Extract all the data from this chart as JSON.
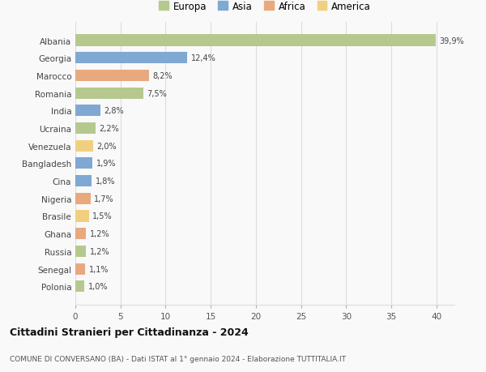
{
  "countries": [
    "Albania",
    "Georgia",
    "Marocco",
    "Romania",
    "India",
    "Ucraina",
    "Venezuela",
    "Bangladesh",
    "Cina",
    "Nigeria",
    "Brasile",
    "Ghana",
    "Russia",
    "Senegal",
    "Polonia"
  ],
  "values": [
    39.9,
    12.4,
    8.2,
    7.5,
    2.8,
    2.2,
    2.0,
    1.9,
    1.8,
    1.7,
    1.5,
    1.2,
    1.2,
    1.1,
    1.0
  ],
  "labels": [
    "39,9%",
    "12,4%",
    "8,2%",
    "7,5%",
    "2,8%",
    "2,2%",
    "2,0%",
    "1,9%",
    "1,8%",
    "1,7%",
    "1,5%",
    "1,2%",
    "1,2%",
    "1,1%",
    "1,0%"
  ],
  "continents": [
    "Europa",
    "Asia",
    "Africa",
    "Europa",
    "Asia",
    "Europa",
    "America",
    "Asia",
    "Asia",
    "Africa",
    "America",
    "Africa",
    "Europa",
    "Africa",
    "Europa"
  ],
  "colors": {
    "Europa": "#b5c98e",
    "Asia": "#7fa8d2",
    "Africa": "#e8a97e",
    "America": "#f0d080"
  },
  "xlim": [
    0,
    42
  ],
  "xticks": [
    0,
    5,
    10,
    15,
    20,
    25,
    30,
    35,
    40
  ],
  "title": "Cittadini Stranieri per Cittadinanza - 2024",
  "subtitle": "COMUNE DI CONVERSANO (BA) - Dati ISTAT al 1° gennaio 2024 - Elaborazione TUTTITALIA.IT",
  "bg_color": "#f9f9f9",
  "grid_color": "#dddddd"
}
